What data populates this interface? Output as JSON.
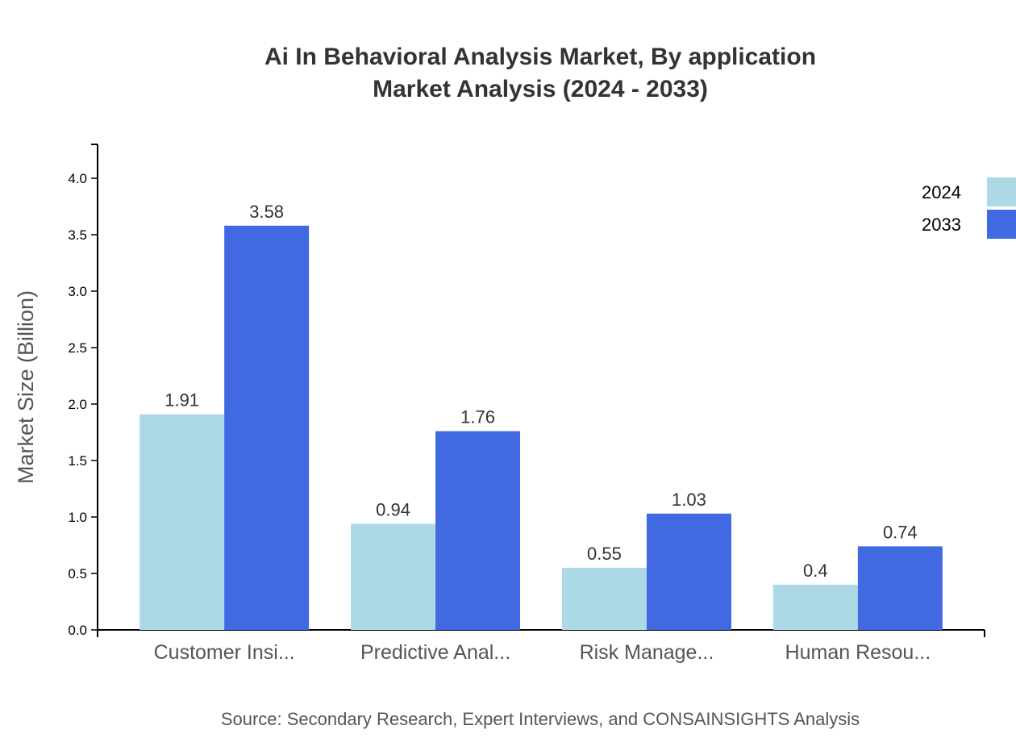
{
  "chart_data": {
    "type": "bar",
    "title": [
      "Ai In Behavioral Analysis Market, By application",
      "Market Analysis (2024 - 2033)"
    ],
    "xlabel": "",
    "ylabel": "Market Size (Billion)",
    "ylim": [
      0,
      4.3
    ],
    "yticks": [
      "0.0",
      "0.5",
      "1.0",
      "1.5",
      "2.0",
      "2.5",
      "3.0",
      "3.5",
      "4.0"
    ],
    "grid": false,
    "legend_position": "top-right",
    "categories": [
      "Customer Insi...",
      "Predictive Anal...",
      "Risk Manage...",
      "Human Resou..."
    ],
    "series": [
      {
        "name": "2024",
        "color": "#add8e6",
        "values": [
          1.91,
          0.94,
          0.55,
          0.4
        ]
      },
      {
        "name": "2033",
        "color": "#4169e1",
        "values": [
          3.58,
          1.76,
          1.03,
          0.74
        ]
      }
    ],
    "source": "Source: Secondary Research, Expert Interviews, and CONSAINSIGHTS Analysis"
  }
}
